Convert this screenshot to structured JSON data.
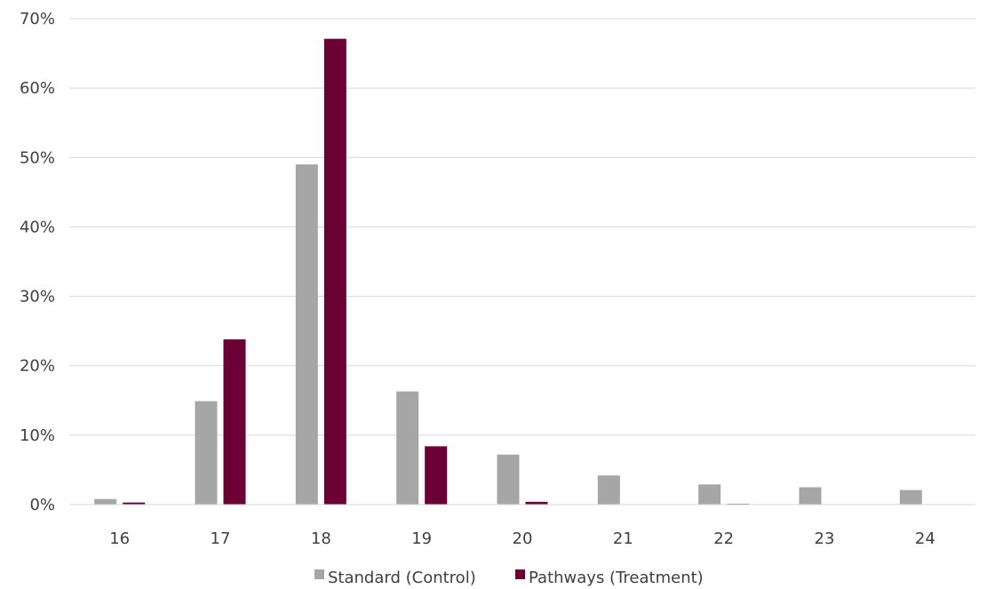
{
  "chart_data": {
    "type": "bar",
    "categories": [
      "16",
      "17",
      "18",
      "19",
      "20",
      "21",
      "22",
      "23",
      "24"
    ],
    "series": [
      {
        "name": "Standard (Control)",
        "color": "#a6a6a6",
        "values": [
          0.8,
          14.9,
          49.0,
          16.3,
          7.2,
          4.2,
          2.9,
          2.5,
          2.1
        ]
      },
      {
        "name": "Pathways (Treatment)",
        "color": "#6b0034",
        "values": [
          0.3,
          23.8,
          67.1,
          8.4,
          0.4,
          0.0,
          0.1,
          0.0,
          0.0
        ]
      }
    ],
    "ylim": [
      0,
      70
    ],
    "yticks": [
      "0%",
      "10%",
      "20%",
      "30%",
      "40%",
      "50%",
      "60%",
      "70%"
    ],
    "ytick_values": [
      0,
      10,
      20,
      30,
      40,
      50,
      60,
      70
    ],
    "grid": true,
    "legend_position": "bottom-center",
    "xlabel": "",
    "ylabel": "",
    "title": ""
  }
}
